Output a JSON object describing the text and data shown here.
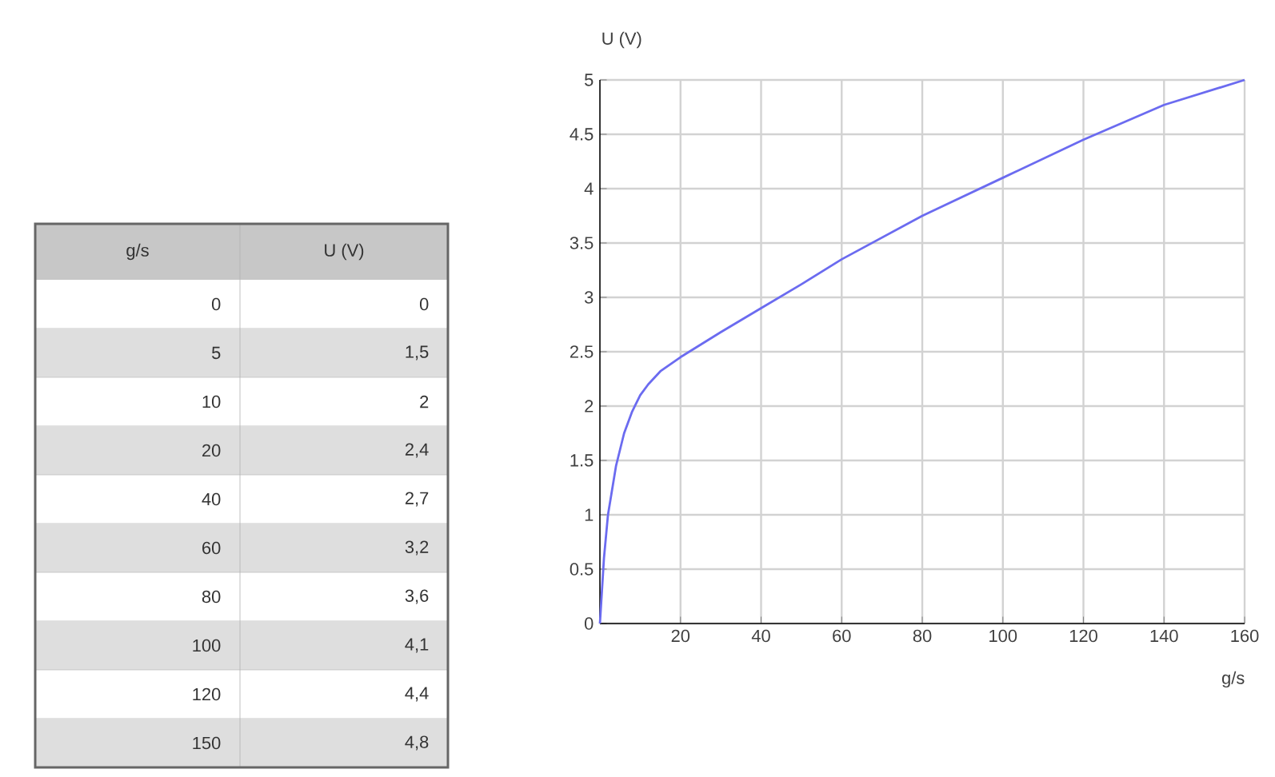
{
  "chart_data": [
    {
      "type": "other",
      "xlabel": "g/s",
      "ylabel": "U (V)",
      "categories": [
        "0",
        "5",
        "10",
        "20",
        "40",
        "60",
        "80",
        "100",
        "120",
        "150"
      ],
      "value_labels": [
        "0",
        "1,5",
        "2",
        "2,4",
        "2,7",
        "3,2",
        "3,6",
        "4,1",
        "4,4",
        "4,8"
      ]
    },
    {
      "type": "line",
      "xlabel": "g/s",
      "ylabel": "U (V)",
      "series": [
        {
          "color": "#6b6bf0",
          "x": [
            0,
            1,
            2,
            4,
            6,
            8,
            10,
            12,
            15,
            20,
            30,
            40,
            50,
            60,
            80,
            100,
            120,
            140,
            160
          ],
          "values": [
            0,
            0.6,
            1.0,
            1.45,
            1.75,
            1.95,
            2.1,
            2.2,
            2.32,
            2.45,
            2.68,
            2.9,
            3.12,
            3.35,
            3.75,
            4.1,
            4.45,
            4.77,
            5.0
          ]
        }
      ],
      "xlim": [
        0,
        160
      ],
      "ylim": [
        0,
        5
      ],
      "xticks": [
        20,
        40,
        60,
        80,
        100,
        120,
        140,
        160
      ],
      "yticks": [
        0,
        0.5,
        1,
        1.5,
        2,
        2.5,
        3,
        3.5,
        4,
        4.5,
        5
      ],
      "grid": true,
      "marker": "none",
      "line_style": "solid"
    }
  ]
}
